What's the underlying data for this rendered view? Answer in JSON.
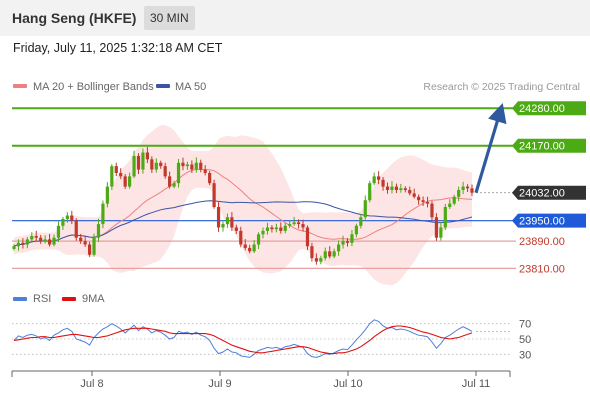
{
  "header": {
    "title": "Hang Seng (HKFE)",
    "timeframe": "30 MIN",
    "timestamp": "Friday, July 11, 2025 1:32:18 AM CET"
  },
  "credit": "Research © 2025 Trading Central",
  "colors": {
    "green_level": "#4caa14",
    "blue_level": "#1f5bd8",
    "red_level": "#e8a0a0",
    "current_price": "#333333",
    "bollinger_fill": "#fde0e0",
    "ma20": "#f08080",
    "ma50": "#3a55a5",
    "bull_candle": "#4caa14",
    "bear_candle": "#c0392b",
    "arrow": "#2f5a9e",
    "rsi": "#4f7fd9",
    "rsi_ma": "#e01010"
  },
  "chart_data": [
    {
      "type": "candlestick",
      "legend": [
        {
          "name": "MA 20 + Bollinger Bands",
          "color": "#f08080"
        },
        {
          "name": "MA 50",
          "color": "#3a55a5"
        }
      ],
      "x_labels": [
        "Jul 8",
        "Jul 9",
        "Jul 10",
        "Jul 11"
      ],
      "ylim": [
        23770,
        24310
      ],
      "levels": [
        {
          "value": 24280,
          "label": "24280.00",
          "kind": "resistance"
        },
        {
          "value": 24170,
          "label": "24170.00",
          "kind": "resistance"
        },
        {
          "value": 24032,
          "label": "24032.00",
          "kind": "current"
        },
        {
          "value": 23950,
          "label": "23950.00",
          "kind": "pivot"
        },
        {
          "value": 23890,
          "label": "23890.00",
          "kind": "support"
        },
        {
          "value": 23810,
          "label": "23810.00",
          "kind": "support"
        }
      ],
      "projection": {
        "from": 24032,
        "to": 24280
      },
      "close": [
        23875,
        23885,
        23880,
        23895,
        23905,
        23900,
        23890,
        23895,
        23880,
        23900,
        23935,
        23955,
        23965,
        23950,
        23900,
        23890,
        23880,
        23850,
        23900,
        23940,
        24000,
        24050,
        24110,
        24090,
        24080,
        24050,
        24080,
        24140,
        24100,
        24150,
        24130,
        24100,
        24120,
        24110,
        24080,
        24050,
        24060,
        24120,
        24110,
        24115,
        24100,
        24120,
        24100,
        24090,
        24060,
        23990,
        23930,
        23940,
        23960,
        23930,
        23920,
        23880,
        23870,
        23860,
        23880,
        23910,
        23920,
        23930,
        23925,
        23930,
        23920,
        23935,
        23940,
        23945,
        23940,
        23930,
        23875,
        23840,
        23830,
        23840,
        23860,
        23845,
        23860,
        23880,
        23890,
        23885,
        23910,
        23935,
        23960,
        24010,
        24060,
        24080,
        24070,
        24050,
        24040,
        24050,
        24040,
        24045,
        24040,
        24030,
        24020,
        24010,
        24005,
        24000,
        23960,
        23900,
        23930,
        23990,
        24000,
        24020,
        24040,
        24050,
        24045,
        24032
      ],
      "rsi": {
        "ticks": [
          30,
          50,
          70
        ],
        "ylim": [
          20,
          80
        ],
        "legend": [
          {
            "name": "RSI",
            "color": "#4f7fd9"
          },
          {
            "name": "9MA",
            "color": "#e01010"
          }
        ],
        "values": [
          48,
          54,
          52,
          55,
          56,
          54,
          50,
          52,
          48,
          55,
          58,
          62,
          64,
          60,
          50,
          48,
          46,
          42,
          52,
          58,
          63,
          66,
          70,
          67,
          63,
          58,
          63,
          68,
          61,
          66,
          63,
          58,
          61,
          59,
          55,
          50,
          52,
          60,
          58,
          59,
          56,
          59,
          55,
          53,
          48,
          38,
          31,
          33,
          37,
          33,
          32,
          28,
          27,
          26,
          30,
          35,
          37,
          39,
          38,
          39,
          37,
          40,
          41,
          43,
          41,
          39,
          31,
          27,
          26,
          28,
          31,
          30,
          32,
          35,
          37,
          36,
          42,
          49,
          55,
          62,
          70,
          75,
          73,
          67,
          64,
          65,
          62,
          63,
          62,
          60,
          57,
          55,
          54,
          53,
          46,
          38,
          44,
          52,
          55,
          59,
          63,
          66,
          63,
          60
        ],
        "ma": [
          48,
          49,
          50,
          51,
          52,
          52,
          53,
          53,
          52,
          52,
          53,
          54,
          55,
          56,
          56,
          55,
          54,
          53,
          52,
          52,
          53,
          54,
          56,
          58,
          60,
          62,
          63,
          64,
          64,
          64,
          64,
          63,
          62,
          61,
          60,
          58,
          57,
          57,
          57,
          57,
          57,
          57,
          57,
          57,
          56,
          54,
          51,
          48,
          45,
          42,
          40,
          38,
          36,
          34,
          33,
          32,
          32,
          33,
          34,
          35,
          36,
          37,
          38,
          39,
          40,
          40,
          39,
          37,
          35,
          33,
          32,
          31,
          31,
          32,
          32,
          33,
          35,
          37,
          40,
          44,
          48,
          53,
          57,
          61,
          64,
          66,
          67,
          67,
          66,
          65,
          63,
          61,
          59,
          58,
          56,
          54,
          52,
          51,
          50,
          51,
          52,
          54,
          56,
          58
        ]
      }
    }
  ]
}
